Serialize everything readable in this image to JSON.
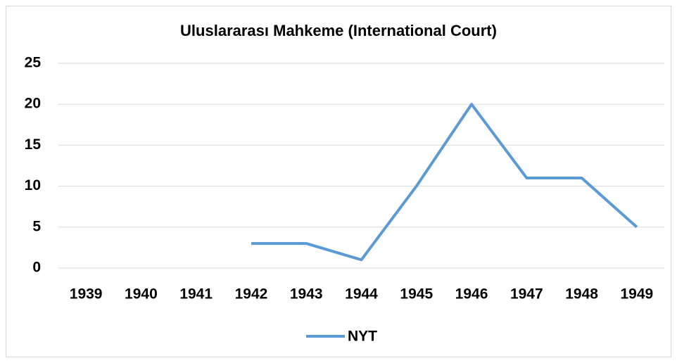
{
  "chart_data": {
    "type": "line",
    "title": "Uluslararası Mahkeme (International Court)",
    "categories": [
      "1939",
      "1940",
      "1941",
      "1942",
      "1943",
      "1944",
      "1945",
      "1946",
      "1947",
      "1948",
      "1949"
    ],
    "series": [
      {
        "name": "NYT",
        "color": "#5b9bd5",
        "values": [
          null,
          null,
          null,
          3,
          3,
          1,
          10,
          20,
          11,
          11,
          5
        ]
      }
    ],
    "ylim": [
      0,
      25
    ],
    "yticks": [
      0,
      5,
      10,
      15,
      20,
      25
    ],
    "grid": true,
    "legend": "bottom"
  }
}
